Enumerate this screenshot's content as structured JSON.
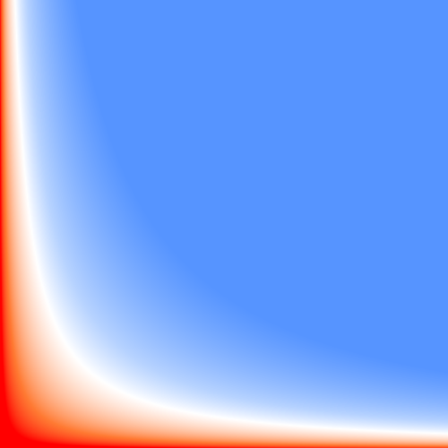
{
  "image": {
    "type": "color-gradient-field",
    "description_free": true,
    "colors": {
      "hot": "#ff0000",
      "warm": "#ff7a33",
      "neutral": "#ffffff",
      "cool": "#b7d3ff",
      "cold": "#5694ff"
    }
  }
}
